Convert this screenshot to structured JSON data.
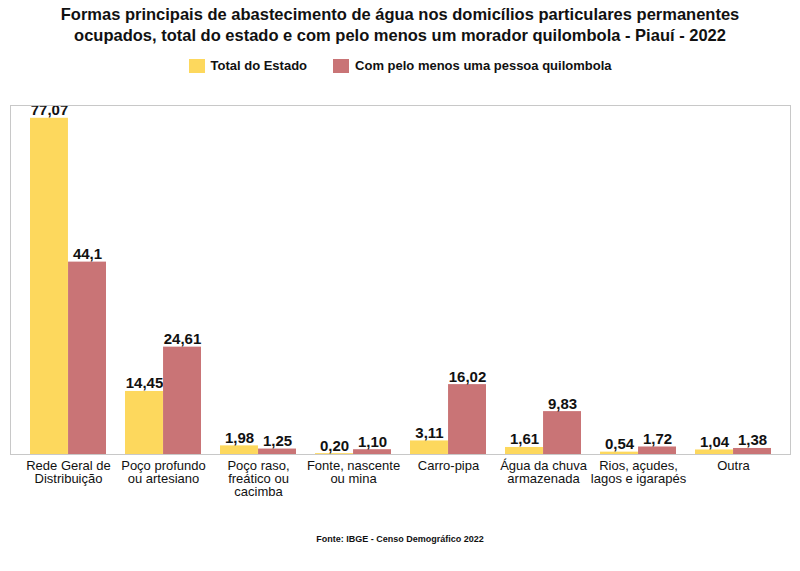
{
  "chart_data": {
    "type": "bar",
    "title": "Formas principais de abastecimento de água nos domicílios particulares permanentes ocupados, total do estado e com pelo menos um morador quilombola - Piauí - 2022",
    "caption": "Fonte: IBGE - Censo Demográfico 2022",
    "categories": [
      "Rede Geral de Distribuição",
      "Poço profundo ou artesiano",
      "Poço raso, freático ou cacimba",
      "Fonte, nascente ou mina",
      "Carro-pipa",
      "Água da chuva armazenada",
      "Rios, açudes, lagos e igarapés",
      "Outra"
    ],
    "series": [
      {
        "name": "Total do Estado",
        "color": "#fdd85d",
        "values": [
          77.07,
          14.45,
          1.98,
          0.2,
          3.11,
          1.61,
          0.54,
          1.04
        ],
        "value_labels": [
          "77,07",
          "14,45",
          "1,98",
          "0,20",
          "3,11",
          "1,61",
          "0,54",
          "1,04"
        ]
      },
      {
        "name": "Com pelo menos uma pessoa quilombola",
        "color": "#c97476",
        "values": [
          44.1,
          24.61,
          1.25,
          1.1,
          16.02,
          9.83,
          1.72,
          1.38
        ],
        "value_labels": [
          "44,1",
          "24,61",
          "1,25",
          "1,10",
          "16,02",
          "9,83",
          "1,72",
          "1,38"
        ]
      }
    ],
    "ylim": [
      0,
      80
    ],
    "yticks": [],
    "grid": false,
    "legend": "top",
    "data_labels": true,
    "tick_labels": "x"
  }
}
